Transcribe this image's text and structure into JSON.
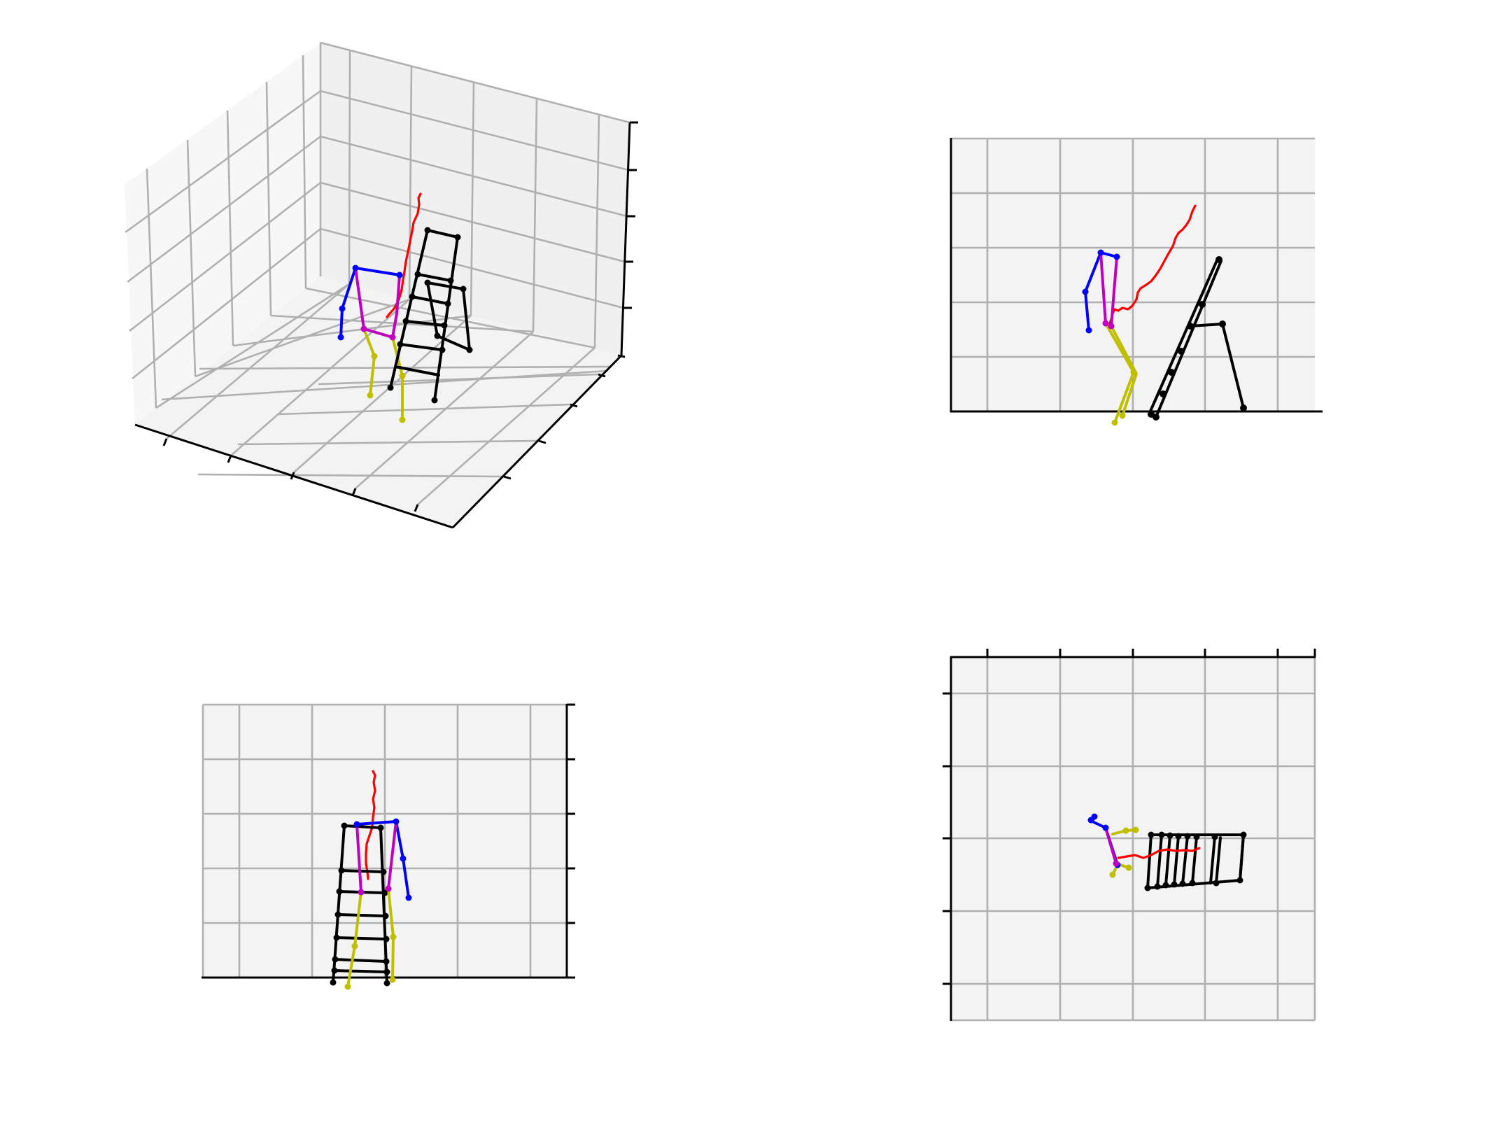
{
  "figure": {
    "panels": [
      {
        "id": "perspective-3d",
        "projection": "3d",
        "tick_labels": "none"
      },
      {
        "id": "side-view",
        "projection": "2d",
        "tick_labels": "none"
      },
      {
        "id": "front-view",
        "projection": "2d",
        "tick_labels": "none"
      },
      {
        "id": "top-view",
        "projection": "2d",
        "tick_labels": "none"
      }
    ],
    "colors": {
      "trail": "#ff0000",
      "arm": "#0000ff",
      "torso": "#bf00bf",
      "leg": "#bfbf00",
      "ladder": "#000000",
      "grid": "#b0b0b0",
      "pane": "#f3f3f3"
    }
  }
}
